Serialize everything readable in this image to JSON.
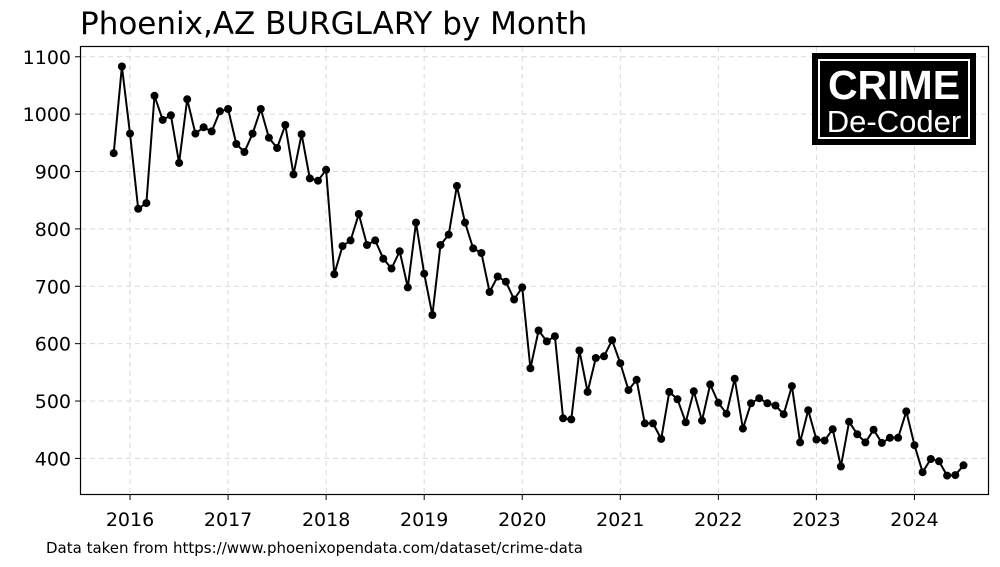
{
  "title": "Phoenix,AZ BURGLARY by Month",
  "source_note": "Data taken from https://www.phoenixopendata.com/dataset/crime-data",
  "logo": {
    "line1": "CRIME",
    "line2": "De-Coder"
  },
  "chart_data": {
    "type": "line",
    "title": "Phoenix,AZ BURGLARY by Month",
    "xlabel": "",
    "ylabel": "",
    "x_ticks": [
      "2016",
      "2017",
      "2018",
      "2019",
      "2020",
      "2021",
      "2022",
      "2023",
      "2024"
    ],
    "y_ticks": [
      400,
      500,
      600,
      700,
      800,
      900,
      1000,
      1100
    ],
    "xlim": [
      "2015-07",
      "2024-10"
    ],
    "ylim": [
      338,
      1117
    ],
    "grid": true,
    "marker": "circle",
    "line_color": "#000000",
    "x": [
      "2015-11",
      "2015-12",
      "2016-01",
      "2016-02",
      "2016-03",
      "2016-04",
      "2016-05",
      "2016-06",
      "2016-07",
      "2016-08",
      "2016-09",
      "2016-10",
      "2016-11",
      "2016-12",
      "2017-01",
      "2017-02",
      "2017-03",
      "2017-04",
      "2017-05",
      "2017-06",
      "2017-07",
      "2017-08",
      "2017-09",
      "2017-10",
      "2017-11",
      "2017-12",
      "2018-01",
      "2018-02",
      "2018-03",
      "2018-04",
      "2018-05",
      "2018-06",
      "2018-07",
      "2018-08",
      "2018-09",
      "2018-10",
      "2018-11",
      "2018-12",
      "2019-01",
      "2019-02",
      "2019-03",
      "2019-04",
      "2019-05",
      "2019-06",
      "2019-07",
      "2019-08",
      "2019-09",
      "2019-10",
      "2019-11",
      "2019-12",
      "2020-01",
      "2020-02",
      "2020-03",
      "2020-04",
      "2020-05",
      "2020-06",
      "2020-07",
      "2020-08",
      "2020-09",
      "2020-10",
      "2020-11",
      "2020-12",
      "2021-01",
      "2021-02",
      "2021-03",
      "2021-04",
      "2021-05",
      "2021-06",
      "2021-07",
      "2021-08",
      "2021-09",
      "2021-10",
      "2021-11",
      "2021-12",
      "2022-01",
      "2022-02",
      "2022-03",
      "2022-04",
      "2022-05",
      "2022-06",
      "2022-07",
      "2022-08",
      "2022-09",
      "2022-10",
      "2022-11",
      "2022-12",
      "2023-01",
      "2023-02",
      "2023-03",
      "2023-04",
      "2023-05",
      "2023-06",
      "2023-07",
      "2023-08",
      "2023-09",
      "2023-10",
      "2023-11",
      "2023-12",
      "2024-01",
      "2024-02",
      "2024-03",
      "2024-04",
      "2024-05",
      "2024-06",
      "2024-07"
    ],
    "y": [
      932,
      1083,
      966,
      835,
      845,
      1032,
      990,
      998,
      915,
      1026,
      966,
      977,
      970,
      1005,
      1009,
      948,
      934,
      966,
      1009,
      959,
      941,
      981,
      895,
      965,
      888,
      884,
      903,
      721,
      770,
      780,
      826,
      772,
      780,
      748,
      731,
      761,
      698,
      811,
      722,
      650,
      772,
      790,
      875,
      811,
      766,
      758,
      690,
      717,
      708,
      677,
      698,
      557,
      623,
      604,
      613,
      470,
      468,
      588,
      516,
      575,
      578,
      606,
      566,
      519,
      537,
      461,
      461,
      434,
      516,
      503,
      463,
      517,
      466,
      529,
      497,
      478,
      539,
      452,
      496,
      505,
      496,
      492,
      477,
      526,
      428,
      484,
      433,
      431,
      451,
      386,
      464,
      442,
      428,
      450,
      427,
      436,
      436,
      482,
      423,
      376,
      399,
      395,
      370,
      371,
      388
    ]
  }
}
